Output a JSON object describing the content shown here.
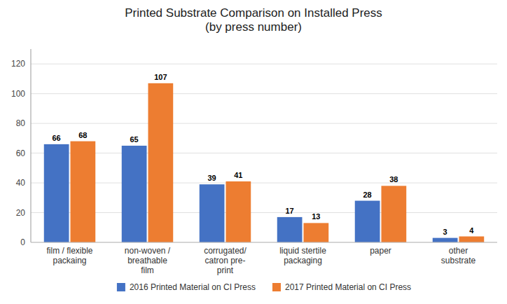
{
  "chart_data": {
    "type": "bar",
    "title": "Printed Substrate Comparison on Installed Press\n(by press number)",
    "categories": [
      "film / flexible\npackaing",
      "non-woven /\nbreathable\nfilm",
      "corrugated/\ncatron pre-\nprint",
      "liquid stertile\npackaging",
      "paper",
      "other\nsubstrate"
    ],
    "series": [
      {
        "name": "2016 Printed Material on CI Press",
        "color": "#4472C4",
        "values": [
          66,
          65,
          39,
          17,
          28,
          3
        ]
      },
      {
        "name": "2017 Printed Material on CI Press",
        "color": "#ED7D31",
        "values": [
          68,
          107,
          41,
          13,
          38,
          4
        ]
      }
    ],
    "ylim": [
      0,
      130
    ],
    "yticks": [
      0,
      20,
      40,
      60,
      80,
      100,
      120
    ],
    "grid": true,
    "legend": "bottom",
    "data_labels": true
  }
}
